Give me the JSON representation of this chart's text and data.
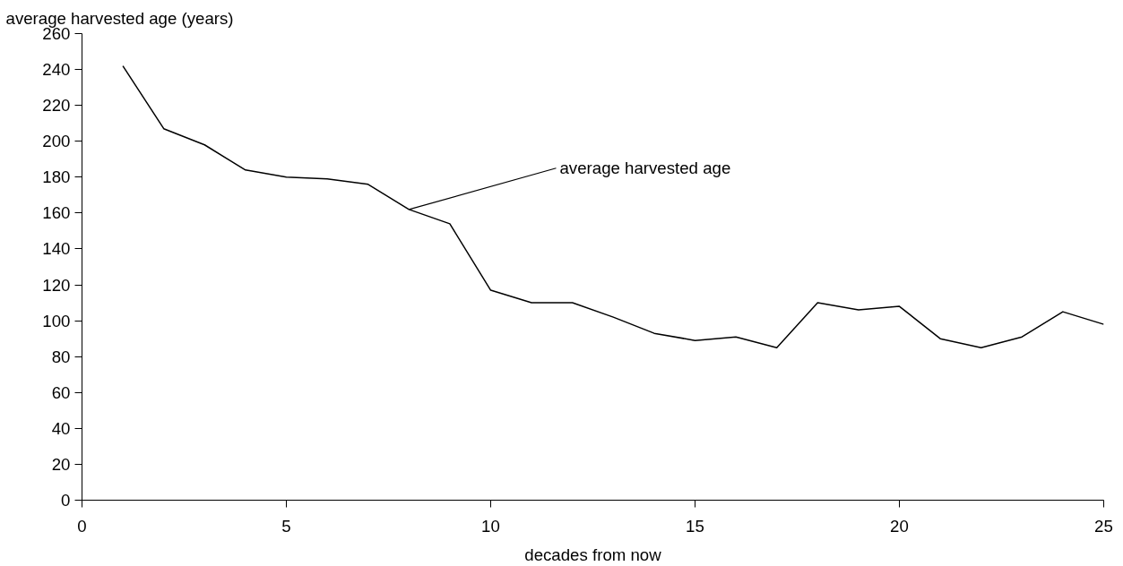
{
  "chart_data": {
    "type": "line",
    "ylabel": "average harvested age (years)",
    "xlabel": "decades from now",
    "x": [
      1,
      2,
      3,
      4,
      5,
      6,
      7,
      8,
      9,
      10,
      11,
      12,
      13,
      14,
      15,
      16,
      17,
      18,
      19,
      20,
      21,
      22,
      23,
      24,
      25
    ],
    "series": [
      {
        "color": "#000000",
        "values": [
          242,
          207,
          198,
          184,
          180,
          179,
          176,
          162,
          154,
          117,
          110,
          110,
          102,
          93,
          89,
          91,
          85,
          110,
          106,
          108,
          90,
          85,
          91,
          105,
          98
        ]
      }
    ],
    "annotations": [
      {
        "text": "average harvested age",
        "x": 8,
        "y": 162
      }
    ],
    "xlim": [
      0,
      25
    ],
    "xticks": [
      0,
      5,
      10,
      15,
      20,
      25
    ],
    "ylim": [
      0,
      260
    ],
    "yticks": [
      0,
      20,
      40,
      60,
      80,
      100,
      120,
      140,
      160,
      180,
      200,
      220,
      240,
      260
    ],
    "grid": false,
    "marker": "none",
    "line_style": "solid"
  }
}
